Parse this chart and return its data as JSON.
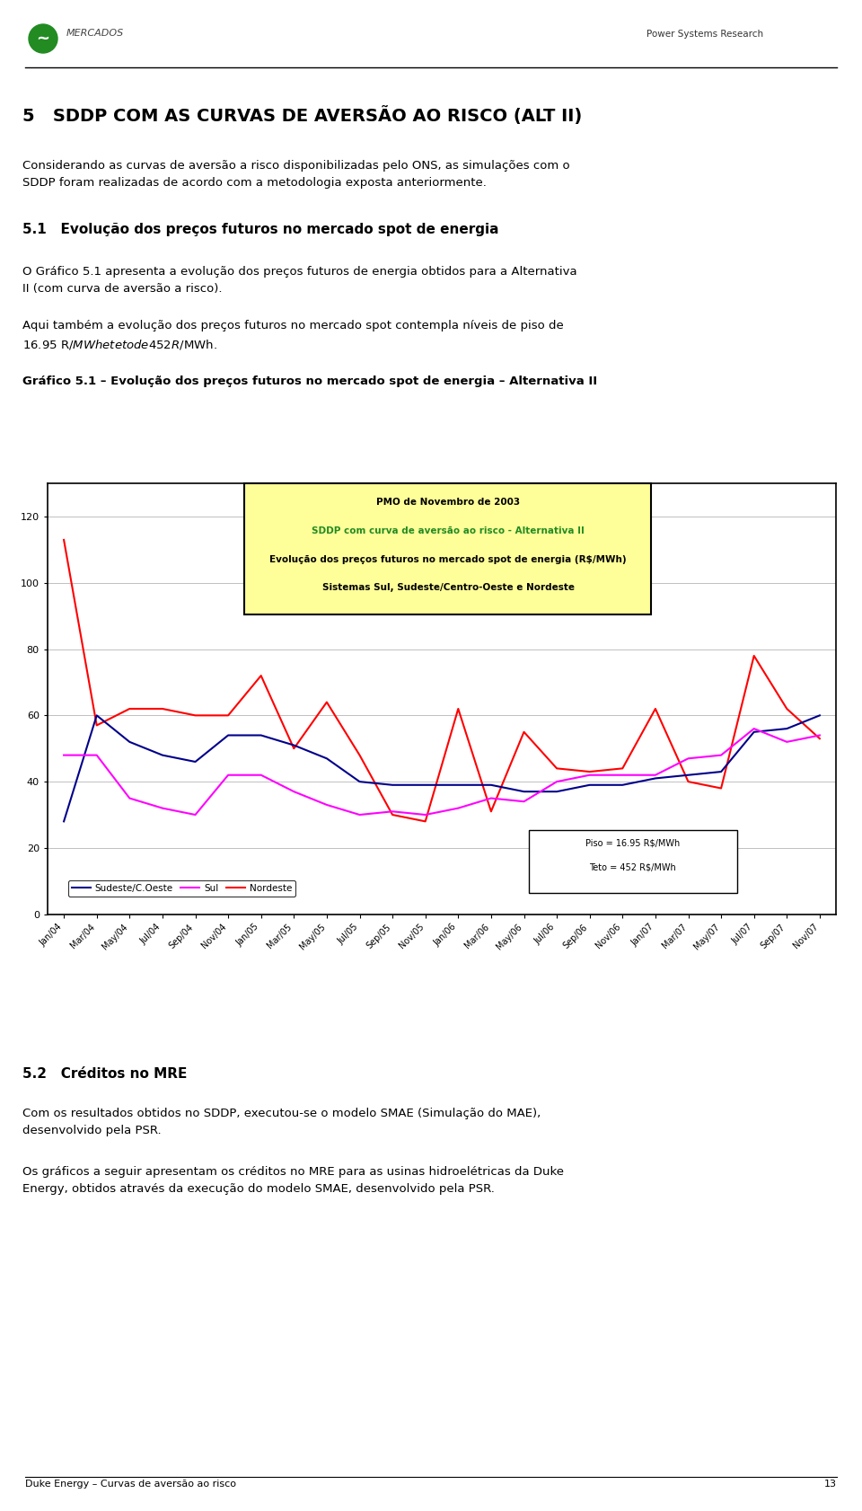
{
  "title_main": "5   SDDP COM AS CURVAS DE AVERSÃO AO RISCO (ALT II)",
  "section51": "5.1   Evolução dos preços futuros no mercado spot de energia",
  "para1": "Considerando as curvas de aversão a risco disponibilizadas pelo ONS, as simulações com o\nSDDP foram realizadas de acordo com a metodologia exposta anteriormente.",
  "para2": "O Gráfico 5.1 apresenta a evolução dos preços futuros de energia obtidos para a Alternativa\nII (com curva de aversão a risco).",
  "para3": "Aqui também a evolução dos preços futuros no mercado spot contempla níveis de piso de\n16.95 R$/MWh e teto de 452 R$/MWh.",
  "chart_title": "Gráfico 5.1 – Evolução dos preços futuros no mercado spot de energia – Alternativa II",
  "box_line1": "PMO de Novembro de 2003",
  "box_line2": "SDDP com curva de aversão ao risco - Alternativa II",
  "box_line3": "Evolução dos preços futuros no mercado spot de energia (R$/MWh)",
  "box_line4": "Sistemas Sul, Sudeste/Centro-Oeste e Nordeste",
  "section52": "5.2   Créditos no MRE",
  "para4": "Com os resultados obtidos no SDDP, executou-se o modelo SMAE (Simulação do MAE),\ndesenvolvido pela PSR.",
  "para5": "Os gráficos a seguir apresentam os créditos no MRE para as usinas hidroelétricas da Duke\nEnergy, obtidos através da execução do modelo SMAE, desenvolvido pela PSR.",
  "ylim": [
    0,
    130
  ],
  "yticks": [
    0,
    20,
    40,
    60,
    80,
    100,
    120
  ],
  "piso_line1": "Piso = 16.95 R$/MWh",
  "piso_line2": "Teto = 452 R$/MWh",
  "legend_labels": [
    "Sudeste/C.Oeste",
    "Sul",
    "Nordeste"
  ],
  "legend_colors": [
    "#00008B",
    "#FF00FF",
    "#FF0000"
  ],
  "xtick_labels": [
    "Jan/04",
    "Mar/04",
    "May/04",
    "Jul/04",
    "Sep/04",
    "Nov/04",
    "Jan/05",
    "Mar/05",
    "May/05",
    "Jul/05",
    "Sep/05",
    "Nov/05",
    "Jan/06",
    "Mar/06",
    "May/06",
    "Jul/06",
    "Sep/06",
    "Nov/06",
    "Jan/07",
    "Mar/07",
    "May/07",
    "Jul/07",
    "Sep/07",
    "Nov/07"
  ],
  "sudeste": [
    28,
    60,
    52,
    48,
    46,
    54,
    54,
    51,
    47,
    40,
    39,
    39,
    39,
    39,
    37,
    37,
    39,
    39,
    41,
    42,
    43,
    55,
    56,
    60
  ],
  "sul": [
    48,
    48,
    35,
    32,
    30,
    42,
    42,
    37,
    33,
    30,
    31,
    30,
    32,
    35,
    34,
    40,
    42,
    42,
    42,
    47,
    48,
    56,
    52,
    54
  ],
  "nordeste": [
    113,
    57,
    62,
    62,
    60,
    60,
    72,
    50,
    64,
    48,
    30,
    28,
    62,
    31,
    55,
    44,
    43,
    44,
    62,
    40,
    38,
    78,
    62,
    53
  ],
  "box_bg": "#FFFF99",
  "box_line2_color": "#228B22",
  "chart_border_color": "#000000",
  "grid_color": "#C0C0C0",
  "footer_text": "Duke Energy – Curvas de aversão ao risco",
  "footer_page": "13"
}
